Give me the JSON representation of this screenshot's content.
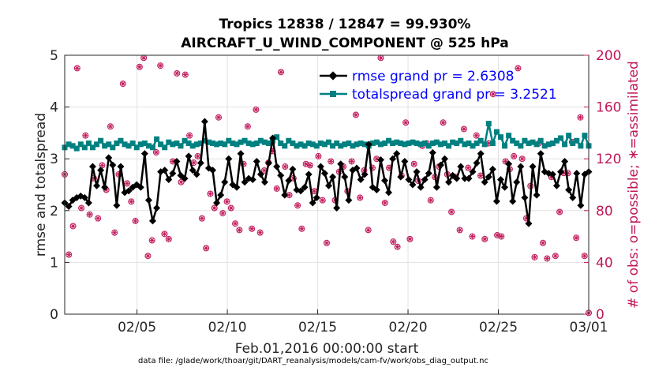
{
  "chart_data": {
    "type": "line",
    "title_line1": "Tropics 12838 / 12847 = 99.930%",
    "title_line2": "AIRCRAFT_U_WIND_COMPONENT @ 525 hPa",
    "ylabel_left": "rmse and totalspread",
    "ylabel_right": "# of obs: o=possible; ∗=assimilated",
    "xlabel": "Feb.01,2016 00:00:00 start",
    "footnote": "data file: /glade/work/thoar/git/DART_reanalysis/models/cam-fv/work/obs_diag_output.nc",
    "x_range": [
      1,
      30
    ],
    "ylim_left": [
      0,
      5
    ],
    "ylim_right": [
      0,
      200
    ],
    "x_ticks": [
      5,
      10,
      15,
      20,
      25,
      30
    ],
    "x_tick_labels": [
      "02/05",
      "02/10",
      "02/15",
      "02/20",
      "02/25",
      "03/01"
    ],
    "y_ticks_left": [
      "0",
      "1",
      "2",
      "3",
      "4",
      "5"
    ],
    "y_ticks_right": [
      "0",
      "40",
      "80",
      "120",
      "160",
      "200"
    ],
    "grid": true,
    "legend_position": "top-right",
    "series": [
      {
        "name": "rmse grand pr = 2.6308",
        "color": "#000000",
        "marker": "diamond",
        "values": [
          2.15,
          2.08,
          2.2,
          2.25,
          2.28,
          2.25,
          2.15,
          2.85,
          2.48,
          2.78,
          2.45,
          3.02,
          2.88,
          2.1,
          2.85,
          2.35,
          2.38,
          2.45,
          2.5,
          2.45,
          3.1,
          2.2,
          1.8,
          2.05,
          2.75,
          2.78,
          2.6,
          2.72,
          2.95,
          2.68,
          2.62,
          3.05,
          2.78,
          2.7,
          2.92,
          3.72,
          2.82,
          2.78,
          2.15,
          2.3,
          2.55,
          3.0,
          2.5,
          2.45,
          3.1,
          2.55,
          2.62,
          2.6,
          2.95,
          2.7,
          2.55,
          2.92,
          3.4,
          2.85,
          2.68,
          2.3,
          2.58,
          2.8,
          2.4,
          2.38,
          2.45,
          2.7,
          2.15,
          2.25,
          2.85,
          2.72,
          2.48,
          2.65,
          2.05,
          2.9,
          2.65,
          2.2,
          2.78,
          2.82,
          2.6,
          2.7,
          3.28,
          2.45,
          2.4,
          2.98,
          2.58,
          2.35,
          3.0,
          3.1,
          2.65,
          2.95,
          2.6,
          2.5,
          2.75,
          2.45,
          2.6,
          2.72,
          3.12,
          2.45,
          2.88,
          3.0,
          2.55,
          2.68,
          2.62,
          2.85,
          2.62,
          2.62,
          2.75,
          2.92,
          3.1,
          2.55,
          2.65,
          2.8,
          2.18,
          2.6,
          2.45,
          2.9,
          2.18,
          2.55,
          2.85,
          2.25,
          1.75,
          2.85,
          2.3,
          3.1,
          2.75,
          2.72,
          2.7,
          2.48,
          2.75,
          2.95,
          2.4,
          2.25,
          2.72,
          2.1,
          2.7,
          2.75
        ]
      },
      {
        "name": "totalspread grand pr = 3.2521",
        "color": "#008080",
        "marker": "square",
        "values": [
          3.22,
          3.28,
          3.25,
          3.2,
          3.28,
          3.22,
          3.3,
          3.22,
          3.28,
          3.35,
          3.25,
          3.28,
          3.22,
          3.3,
          3.35,
          3.28,
          3.25,
          3.3,
          3.22,
          3.28,
          3.3,
          3.25,
          3.22,
          3.38,
          3.28,
          3.22,
          3.32,
          3.28,
          3.3,
          3.25,
          3.35,
          3.3,
          3.25,
          3.28,
          3.3,
          3.35,
          3.32,
          3.3,
          3.28,
          3.3,
          3.28,
          3.35,
          3.3,
          3.28,
          3.32,
          3.35,
          3.3,
          3.28,
          3.3,
          3.35,
          3.32,
          3.3,
          3.35,
          3.42,
          3.3,
          3.25,
          3.35,
          3.3,
          3.25,
          3.28,
          3.25,
          3.3,
          3.28,
          3.25,
          3.3,
          3.28,
          3.32,
          3.25,
          3.3,
          3.25,
          3.28,
          3.3,
          3.25,
          3.28,
          3.3,
          3.28,
          3.25,
          3.3,
          3.32,
          3.28,
          3.3,
          3.35,
          3.3,
          3.32,
          3.3,
          3.28,
          3.3,
          3.32,
          3.3,
          3.28,
          3.3,
          3.25,
          3.3,
          3.32,
          3.28,
          3.3,
          3.25,
          3.32,
          3.3,
          3.35,
          3.28,
          3.3,
          3.25,
          3.3,
          3.35,
          3.28,
          3.68,
          3.3,
          3.52,
          3.42,
          3.25,
          3.45,
          3.35,
          3.3,
          3.25,
          3.35,
          3.3,
          3.32,
          3.28,
          3.35,
          3.25,
          3.28,
          3.3,
          3.35,
          3.4,
          3.28,
          3.45,
          3.3,
          3.35,
          3.25,
          3.45,
          3.25
        ]
      },
      {
        "name": "# of obs possible",
        "color": "#c0185a",
        "marker": "circle",
        "axis": "right",
        "values": [
          108,
          46,
          68,
          190,
          82,
          138,
          77,
          105,
          74,
          115,
          96,
          145,
          63,
          108,
          178,
          101,
          87,
          72,
          191,
          198,
          45,
          57,
          125,
          192,
          62,
          58,
          118,
          186,
          102,
          185,
          138,
          117,
          122,
          74,
          51,
          93,
          82,
          152,
          78,
          87,
          82,
          70,
          65,
          116,
          145,
          66,
          158,
          63,
          111,
          117,
          126,
          97,
          187,
          114,
          92,
          105,
          84,
          66,
          116,
          115,
          95,
          122,
          88,
          55,
          118,
          88,
          110,
          114,
          95,
          118,
          154,
          90,
          111,
          65,
          113,
          120,
          198,
          86,
          113,
          56,
          52,
          107,
          148,
          58,
          116,
          103,
          130,
          132,
          88,
          106,
          114,
          148,
          108,
          79,
          106,
          65,
          143,
          113,
          60,
          138,
          107,
          58,
          132,
          170,
          61,
          60,
          118,
          112,
          122,
          190,
          120,
          74,
          99,
          44,
          132,
          55,
          43,
          106,
          45,
          79,
          109,
          109,
          133,
          59,
          152,
          45,
          1
        ]
      }
    ]
  }
}
